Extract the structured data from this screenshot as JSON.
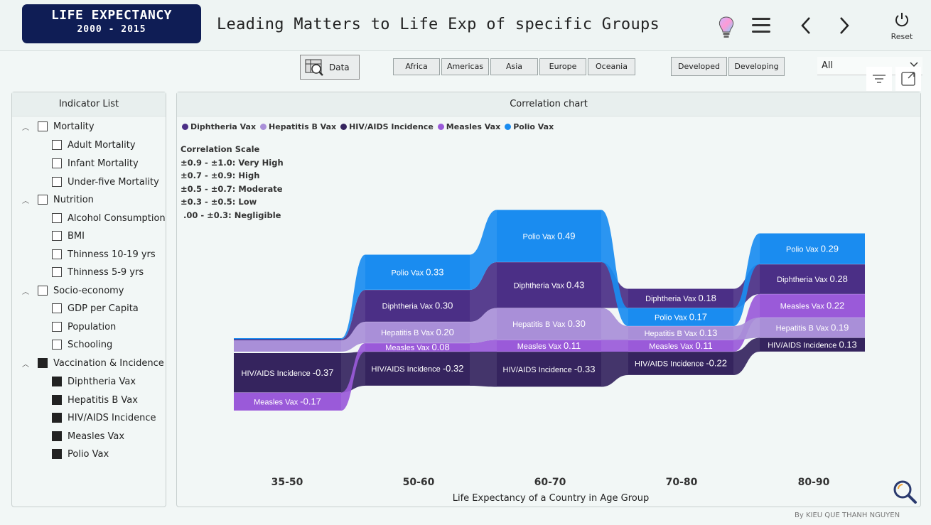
{
  "header": {
    "logo_title": "LIFE EXPECTANCY",
    "logo_years": "2000 - 2015",
    "title": "Leading Matters to Life Exp of specific Groups",
    "reset_label": "Reset"
  },
  "toolbar": {
    "data_label": "Data",
    "regions": [
      "Africa",
      "Americas",
      "Asia",
      "Europe",
      "Oceania"
    ],
    "status": [
      "Developed",
      "Developing"
    ],
    "dropdown_value": "All"
  },
  "indicator_panel": {
    "title": "Indicator List",
    "groups": [
      {
        "label": "Mortality",
        "checked": false,
        "items": [
          {
            "label": "Adult Mortality",
            "checked": false
          },
          {
            "label": "Infant Mortality",
            "checked": false
          },
          {
            "label": "Under-five Mortality",
            "checked": false
          }
        ]
      },
      {
        "label": "Nutrition",
        "checked": false,
        "items": [
          {
            "label": "Alcohol Consumption",
            "checked": false
          },
          {
            "label": "BMI",
            "checked": false
          },
          {
            "label": "Thinness 10-19 yrs",
            "checked": false
          },
          {
            "label": "Thinness 5-9 yrs",
            "checked": false
          }
        ]
      },
      {
        "label": "Socio-economy",
        "checked": false,
        "items": [
          {
            "label": "GDP per Capita",
            "checked": false
          },
          {
            "label": "Population",
            "checked": false
          },
          {
            "label": "Schooling",
            "checked": false
          }
        ]
      },
      {
        "label": "Vaccination & Incidence",
        "checked": true,
        "items": [
          {
            "label": "Diphtheria Vax",
            "checked": true
          },
          {
            "label": "Hepatitis B Vax",
            "checked": true
          },
          {
            "label": "HIV/AIDS Incidence",
            "checked": true
          },
          {
            "label": "Measles Vax",
            "checked": true
          },
          {
            "label": "Polio Vax",
            "checked": true
          }
        ]
      }
    ]
  },
  "chart_panel": {
    "title": "Correlation chart",
    "scale_title": "Correlation Scale",
    "scale_lines": [
      "±0.9 - ±1.0: Very High",
      "±0.7 - ±0.9: High",
      "±0.5 - ±0.7: Moderate",
      "±0.3 - ±0.5: Low",
      " .00 - ±0.3: Negligible"
    ]
  },
  "chart_data": {
    "type": "ribbon",
    "categories": [
      "35-50",
      "50-60",
      "60-70",
      "70-80",
      "80-90"
    ],
    "xlabel": "Life Expectancy of a Country in Age Group",
    "series": [
      {
        "name": "Diphtheria Vax",
        "color": "#4b2f86",
        "values": [
          null,
          0.3,
          0.43,
          0.18,
          0.28
        ]
      },
      {
        "name": "Hepatitis B Vax",
        "color": "#a98fd8",
        "values": [
          null,
          0.2,
          0.3,
          0.13,
          0.19
        ]
      },
      {
        "name": "HIV/AIDS Incidence",
        "color": "#35245e",
        "values": [
          -0.37,
          -0.32,
          -0.33,
          -0.22,
          0.13
        ]
      },
      {
        "name": "Measles Vax",
        "color": "#9a5ad9",
        "values": [
          -0.17,
          0.08,
          0.11,
          0.11,
          0.22
        ]
      },
      {
        "name": "Polio Vax",
        "color": "#1a8cf0",
        "values": [
          null,
          0.33,
          0.49,
          0.17,
          0.29
        ]
      }
    ]
  },
  "footer": {
    "credit": "By KIEU QUE THANH NGUYEN"
  }
}
